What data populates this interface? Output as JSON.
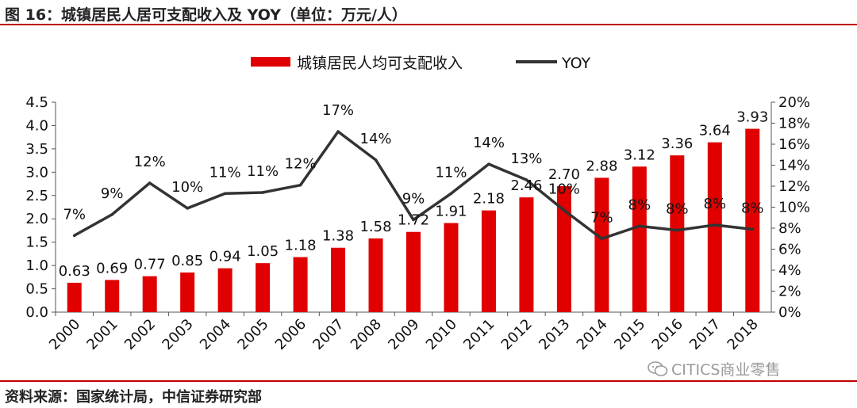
{
  "header": {
    "title": "图 16：城镇居民人居可支配收入及 YOY（单位：万元/人）"
  },
  "footer": {
    "source": "资料来源：国家统计局，中信证券研究部"
  },
  "watermark": {
    "text": "CITICS商业零售",
    "icon": "wechat-icon"
  },
  "colors": {
    "bar": "#e00000",
    "line": "#333333",
    "accent": "#c00000"
  },
  "chart_data": {
    "type": "bar",
    "categories": [
      "2000",
      "2001",
      "2002",
      "2003",
      "2004",
      "2005",
      "2006",
      "2007",
      "2008",
      "2009",
      "2010",
      "2011",
      "2012",
      "2013",
      "2014",
      "2015",
      "2016",
      "2017",
      "2018"
    ],
    "series": [
      {
        "name": "城镇居民人均可支配收入",
        "type": "bar",
        "axis": "left",
        "values": [
          0.63,
          0.69,
          0.77,
          0.85,
          0.94,
          1.05,
          1.18,
          1.38,
          1.58,
          1.72,
          1.91,
          2.18,
          2.46,
          2.7,
          2.88,
          3.12,
          3.36,
          3.64,
          3.93
        ],
        "labels": [
          "0.63",
          "0.69",
          "0.77",
          "0.85",
          "0.94",
          "1.05",
          "1.18",
          "1.38",
          "1.58",
          "1.72",
          "1.91",
          "2.18",
          "2.46",
          "2.70",
          "2.88",
          "3.12",
          "3.36",
          "3.64",
          "3.93"
        ]
      },
      {
        "name": "YOY",
        "type": "line",
        "axis": "right",
        "values": [
          7.3,
          9.3,
          12.3,
          9.9,
          11.3,
          11.4,
          12.1,
          17.2,
          14.5,
          8.8,
          11.3,
          14.1,
          12.6,
          9.7,
          7.0,
          8.2,
          7.8,
          8.3,
          7.9
        ],
        "labels": [
          "7%",
          "9%",
          "12%",
          "10%",
          "11%",
          "11%",
          "12%",
          "17%",
          "14%",
          "9%",
          "11%",
          "14%",
          "13%",
          "10%",
          "7%",
          "8%",
          "8%",
          "8%",
          "8%"
        ]
      }
    ],
    "y_left": {
      "min": 0,
      "max": 4.5,
      "ticks": [
        "0.0",
        "0.5",
        "1.0",
        "1.5",
        "2.0",
        "2.5",
        "3.0",
        "3.5",
        "4.0",
        "4.5"
      ]
    },
    "y_right": {
      "min": 0,
      "max": 20,
      "ticks": [
        "0%",
        "2%",
        "4%",
        "6%",
        "8%",
        "10%",
        "12%",
        "14%",
        "16%",
        "18%",
        "20%"
      ]
    },
    "legend_position": "top-center",
    "grid": false
  }
}
